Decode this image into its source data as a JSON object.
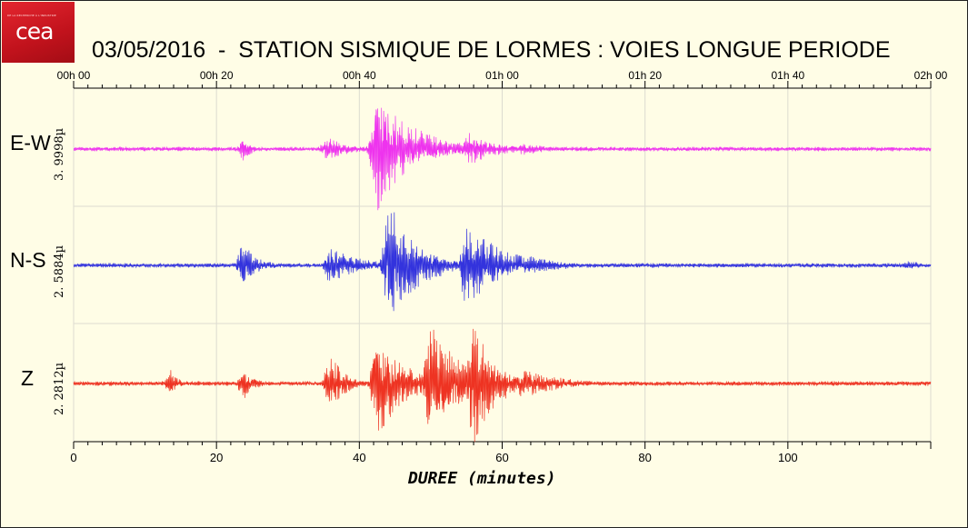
{
  "logo": {
    "text": "cea",
    "tagline": "DE LA RECHERCHE À L'INDUSTRIE"
  },
  "title": "03/05/2016  -  STATION SISMIQUE DE LORMES : VOIES LONGUE PERIODE",
  "chart_data": {
    "type": "line",
    "xlabel": "DUREE (minutes)",
    "xlim": [
      0,
      120
    ],
    "x_ticks": [
      "0",
      "20",
      "40",
      "60",
      "80",
      "100"
    ],
    "top_ticks": [
      "00h 00",
      "00h 20",
      "00h 40",
      "01h 00",
      "01h 20",
      "01h 40",
      "02h 00"
    ],
    "grid": true,
    "series": [
      {
        "name": "E-W",
        "scale_label": "3. 9998µ",
        "color": "#ee33ee",
        "events": [
          {
            "t": 23.8,
            "amp": 0.18,
            "dur": 1.2
          },
          {
            "t": 35.5,
            "amp": 0.2,
            "dur": 3
          },
          {
            "t": 42.5,
            "amp": 1.0,
            "dur": 5
          },
          {
            "t": 55.5,
            "amp": 0.28,
            "dur": 4
          },
          {
            "t": 63,
            "amp": 0.1,
            "dur": 4
          }
        ]
      },
      {
        "name": "N-S",
        "scale_label": "2. 5884µ",
        "color": "#3333dd",
        "events": [
          {
            "t": 23.8,
            "amp": 0.35,
            "dur": 2
          },
          {
            "t": 36,
            "amp": 0.3,
            "dur": 4
          },
          {
            "t": 44.2,
            "amp": 1.0,
            "dur": 4
          },
          {
            "t": 55,
            "amp": 0.7,
            "dur": 5
          },
          {
            "t": 64,
            "amp": 0.15,
            "dur": 5
          },
          {
            "t": 117,
            "amp": 0.08,
            "dur": 2
          }
        ]
      },
      {
        "name": "Z",
        "scale_label": "2. 2812µ",
        "color": "#ee3322",
        "events": [
          {
            "t": 13.7,
            "amp": 0.2,
            "dur": 1
          },
          {
            "t": 23.8,
            "amp": 0.25,
            "dur": 1.5
          },
          {
            "t": 36,
            "amp": 0.45,
            "dur": 2
          },
          {
            "t": 42.5,
            "amp": 0.8,
            "dur": 4
          },
          {
            "t": 50,
            "amp": 0.9,
            "dur": 5
          },
          {
            "t": 56,
            "amp": 1.0,
            "dur": 3
          },
          {
            "t": 63,
            "amp": 0.25,
            "dur": 5
          }
        ]
      }
    ]
  }
}
